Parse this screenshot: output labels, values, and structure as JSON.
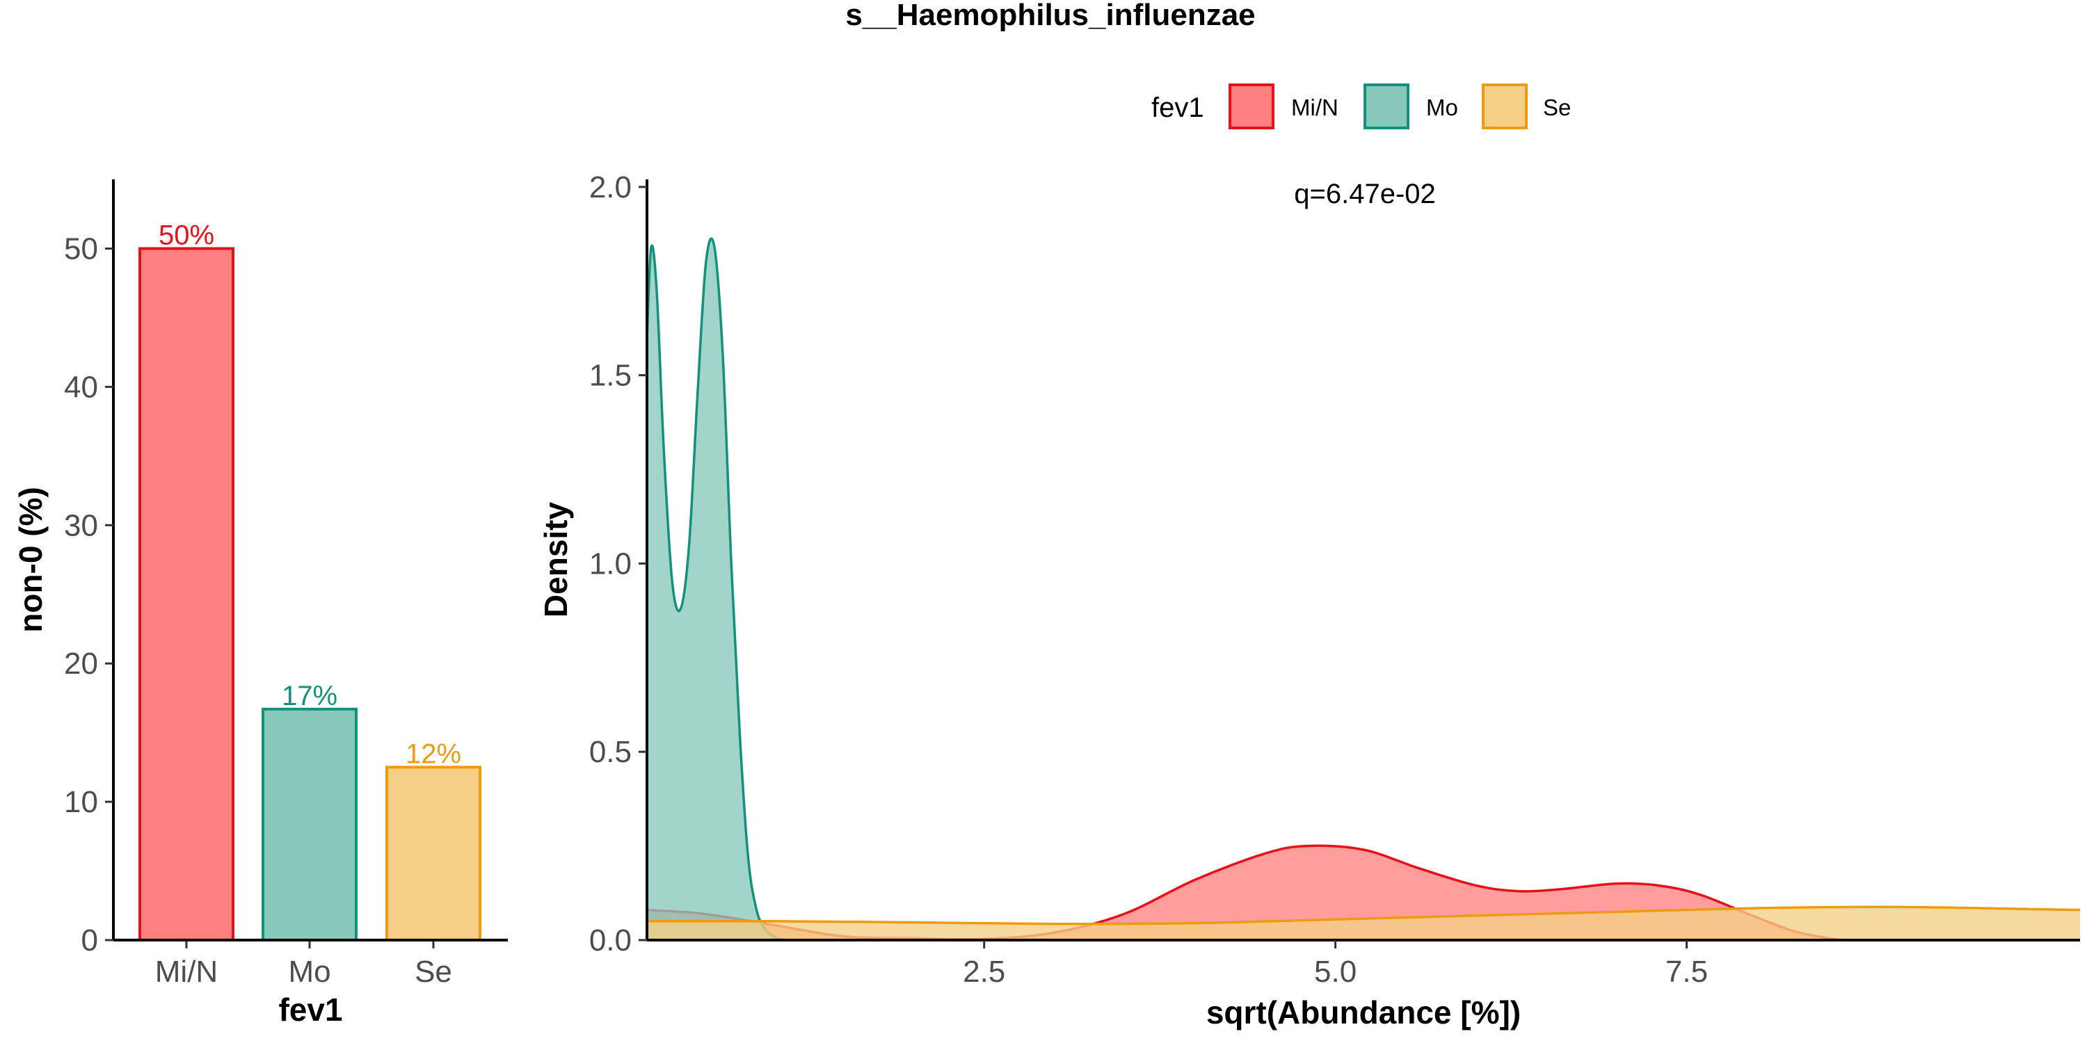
{
  "title": "s__Haemophilus_influenzae",
  "legend": {
    "title": "fev1",
    "items": [
      {
        "label": "Mi/N",
        "fill": "#FF8080",
        "stroke": "#E8101B"
      },
      {
        "label": "Mo",
        "fill": "#88C8BB",
        "stroke": "#14917A"
      },
      {
        "label": "Se",
        "fill": "#F5CF85",
        "stroke": "#EC9B12"
      }
    ]
  },
  "chart_data": [
    {
      "type": "bar",
      "categories": [
        "Mi/N",
        "Mo",
        "Se"
      ],
      "values": [
        50,
        16.7,
        12.5
      ],
      "data_labels": [
        "50%",
        "17%",
        "12%"
      ],
      "xlabel": "fev1",
      "ylabel": "non-0 (%)",
      "ylim": [
        0,
        55
      ],
      "yticks": [
        0,
        10,
        20,
        30,
        40,
        50
      ],
      "ytick_labels": [
        "0",
        "10",
        "20",
        "30",
        "40",
        "50"
      ],
      "colors": {
        "fill": [
          "#FF8080",
          "#88C8BB",
          "#F5CF85"
        ],
        "stroke": [
          "#E8101B",
          "#14917A",
          "#EC9B12"
        ]
      }
    },
    {
      "type": "area",
      "xlabel": "sqrt(Abundance [%])",
      "ylabel": "Density",
      "annotation": "q=6.47e-02",
      "xlim": [
        0.1,
        10.3
      ],
      "ylim": [
        0,
        2.02
      ],
      "xticks": [
        2.5,
        5.0,
        7.5
      ],
      "xtick_labels": [
        "2.5",
        "5.0",
        "7.5"
      ],
      "yticks": [
        0,
        0.5,
        1.0,
        1.5,
        2.0
      ],
      "ytick_labels": [
        "0.0",
        "0.5",
        "1.0",
        "1.5",
        "2.0"
      ],
      "series": [
        {
          "name": "Mi/N",
          "fill": "#FF8080",
          "stroke": "#E8101B",
          "x": [
            0.1,
            0.5,
            1.0,
            1.5,
            2.0,
            2.5,
            3.0,
            3.5,
            4.0,
            4.5,
            4.8,
            5.2,
            5.6,
            6.0,
            6.3,
            6.6,
            7.0,
            7.3,
            7.6,
            8.0,
            8.3,
            8.6
          ],
          "y": [
            0.08,
            0.07,
            0.04,
            0.01,
            0.005,
            0.003,
            0.02,
            0.07,
            0.16,
            0.23,
            0.25,
            0.24,
            0.19,
            0.145,
            0.13,
            0.135,
            0.15,
            0.145,
            0.12,
            0.06,
            0.02,
            0.0
          ]
        },
        {
          "name": "Mo",
          "fill": "#88C8BB",
          "stroke": "#14917A",
          "x": [
            0.1,
            0.13,
            0.17,
            0.22,
            0.28,
            0.34,
            0.4,
            0.46,
            0.52,
            0.58,
            0.64,
            0.7,
            0.76,
            0.82,
            0.88,
            0.94,
            1.0,
            1.08,
            1.2
          ],
          "y": [
            1.6,
            1.84,
            1.72,
            1.3,
            0.95,
            0.88,
            1.05,
            1.45,
            1.8,
            1.84,
            1.55,
            1.0,
            0.55,
            0.22,
            0.08,
            0.03,
            0.01,
            0.0,
            0.0
          ]
        },
        {
          "name": "Se",
          "fill": "#F5CF85",
          "stroke": "#EC9B12",
          "x": [
            0.1,
            1.0,
            2.0,
            3.0,
            4.0,
            5.0,
            6.0,
            7.0,
            8.0,
            9.0,
            10.0,
            10.3
          ],
          "y": [
            0.05,
            0.05,
            0.047,
            0.043,
            0.045,
            0.055,
            0.065,
            0.075,
            0.085,
            0.088,
            0.082,
            0.08
          ]
        }
      ]
    }
  ]
}
